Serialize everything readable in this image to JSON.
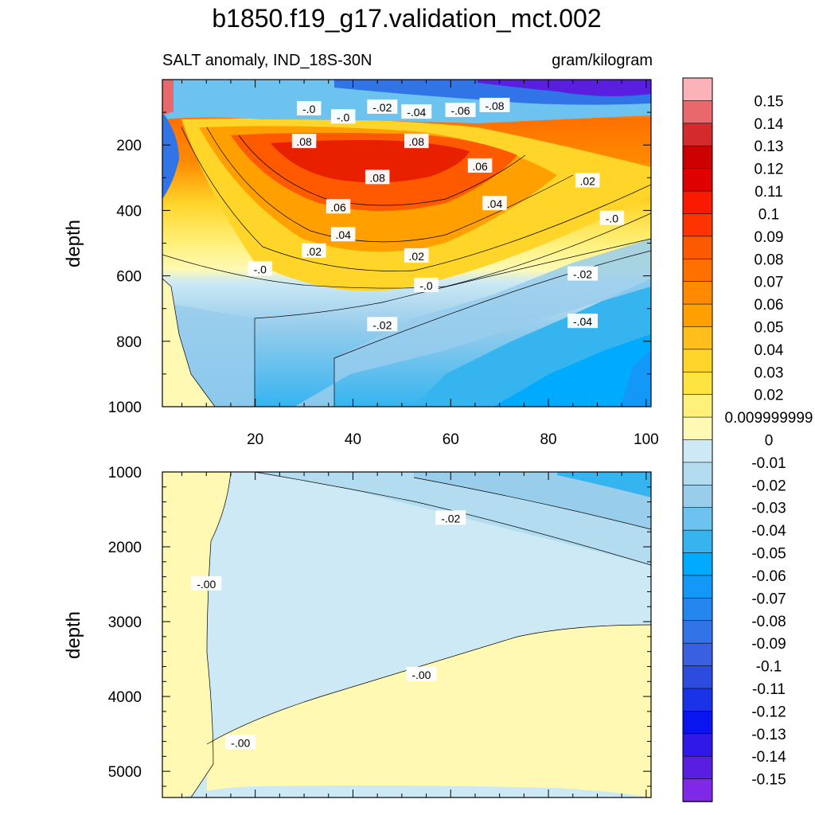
{
  "title": "b1850.f19_g17.validation_mct.002",
  "subtitle_left": "SALT anomaly, IND_18S-30N",
  "subtitle_right": "gram/kilogram",
  "chart_data": [
    {
      "type": "heatmap",
      "panel": "upper",
      "ylabel": "depth",
      "xlabel": "",
      "xlim": [
        1,
        101
      ],
      "ylim": [
        1000,
        0
      ],
      "x_ticks": [
        20,
        40,
        60,
        80,
        100
      ],
      "y_ticks": [
        200,
        400,
        600,
        800,
        1000
      ],
      "contour_labels": [
        {
          "text": "-.0",
          "x": 31,
          "y": 90
        },
        {
          "text": "-.0",
          "x": 38,
          "y": 115
        },
        {
          "text": "-.02",
          "x": 46,
          "y": 85
        },
        {
          "text": "-.04",
          "x": 53,
          "y": 100
        },
        {
          "text": "-.06",
          "x": 62,
          "y": 95
        },
        {
          "text": "-.08",
          "x": 69,
          "y": 80
        },
        {
          "text": ".08",
          "x": 30,
          "y": 190
        },
        {
          "text": ".08",
          "x": 53,
          "y": 190
        },
        {
          "text": ".08",
          "x": 45,
          "y": 300
        },
        {
          "text": ".06",
          "x": 66,
          "y": 265
        },
        {
          "text": ".02",
          "x": 88,
          "y": 310
        },
        {
          "text": ".06",
          "x": 37,
          "y": 390
        },
        {
          "text": ".04",
          "x": 69,
          "y": 380
        },
        {
          "text": "-.0",
          "x": 93,
          "y": 425
        },
        {
          "text": ".04",
          "x": 38,
          "y": 475
        },
        {
          "text": ".02",
          "x": 32,
          "y": 525
        },
        {
          "text": ".02",
          "x": 53,
          "y": 540
        },
        {
          "text": "-.0",
          "x": 21,
          "y": 580
        },
        {
          "text": "-.0",
          "x": 55,
          "y": 630
        },
        {
          "text": "-.02",
          "x": 87,
          "y": 595
        },
        {
          "text": "-.02",
          "x": 46,
          "y": 750
        },
        {
          "text": "-.04",
          "x": 87,
          "y": 740
        }
      ]
    },
    {
      "type": "heatmap",
      "panel": "lower",
      "ylabel": "depth",
      "xlabel": "",
      "xlim": [
        1,
        101
      ],
      "ylim": [
        1000,
        5350
      ],
      "y_ticks": [
        1000,
        2000,
        3000,
        4000,
        5000
      ],
      "contour_labels": [
        {
          "text": "-.02",
          "x": 60,
          "y": 1620
        },
        {
          "text": "-.00",
          "x": 10,
          "y": 2500
        },
        {
          "text": "-.00",
          "x": 54,
          "y": 3710
        },
        {
          "text": "-.00",
          "x": 17,
          "y": 4620
        }
      ]
    }
  ],
  "colorbar": {
    "labels": [
      "0.15",
      "0.14",
      "0.13",
      "0.12",
      "0.11",
      "0.1",
      "0.09",
      "0.08",
      "0.07",
      "0.06",
      "0.05",
      "0.04",
      "0.03",
      "0.02",
      "0.009999999",
      "0",
      "-0.01",
      "-0.02",
      "-0.03",
      "-0.04",
      "-0.05",
      "-0.06",
      "-0.07",
      "-0.08",
      "-0.09",
      "-0.1",
      "-0.11",
      "-0.12",
      "-0.13",
      "-0.14",
      "-0.15"
    ],
    "colors": [
      "#fbb3b7",
      "#e8686c",
      "#d42a2c",
      "#cc0000",
      "#e00000",
      "#fb1a00",
      "#ff3300",
      "#fb5a00",
      "#ff7000",
      "#ff8a00",
      "#ffa000",
      "#ffbe1a",
      "#ffd52a",
      "#ffe340",
      "#fff07a",
      "#fff9b3",
      "#cce9f5",
      "#b4dcf0",
      "#99cdec",
      "#6dc3ef",
      "#36b4f0",
      "#00aaff",
      "#1398f8",
      "#2586ef",
      "#3174e8",
      "#3960e0",
      "#2c4ce0",
      "#1a33e8",
      "#0a14f0",
      "#3018e8",
      "#5a1ee0",
      "#8028e8"
    ]
  },
  "colors": {
    "background": "#ffffff",
    "axis": "#000000"
  }
}
